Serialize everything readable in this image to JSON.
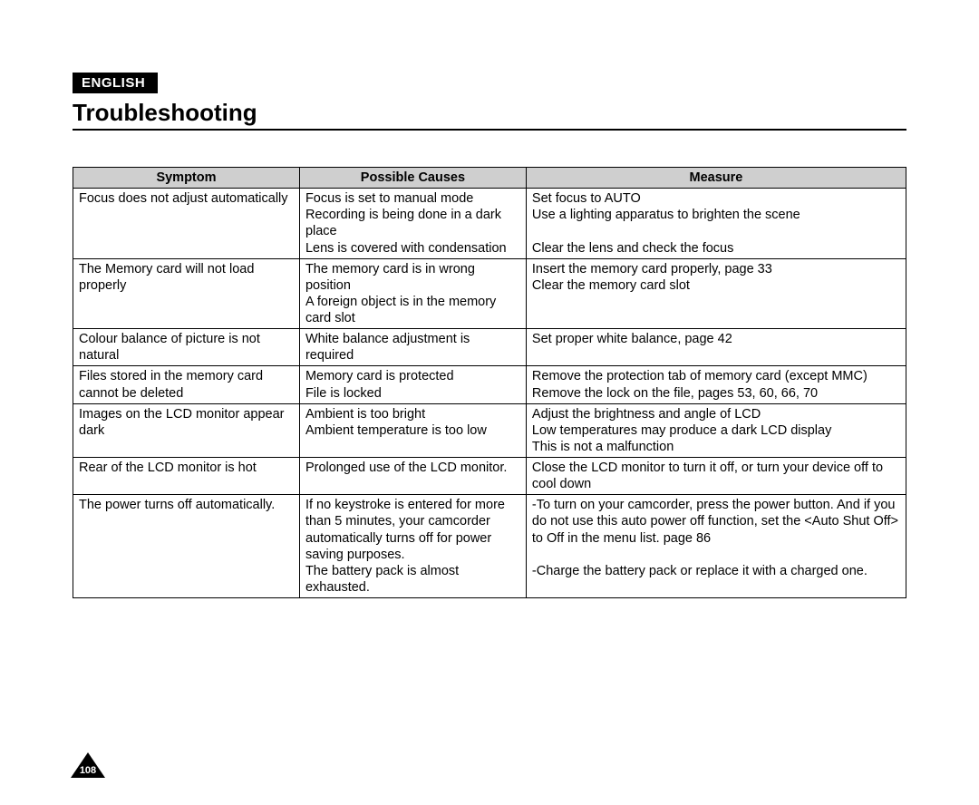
{
  "language_badge": "ENGLISH",
  "title": "Troubleshooting",
  "page_number": "108",
  "table": {
    "background_header": "#cfcfcf",
    "border_color": "#000000",
    "font_size_pt": 11,
    "columns": [
      "Symptom",
      "Possible Causes",
      "Measure"
    ],
    "column_widths_pct": [
      27.2,
      27.2,
      45.6
    ],
    "rows": [
      {
        "symptom": "Focus does not adjust automatically",
        "cause": "Focus is set to manual mode\nRecording is being done in a dark place\nLens is covered with condensation",
        "measure": "Set focus to AUTO\nUse a lighting apparatus to brighten the scene\n\nClear the lens and check the focus"
      },
      {
        "symptom": "The Memory card will not load properly",
        "cause": "The memory card is in wrong position\nA foreign object is in the memory card slot",
        "measure": "Insert the memory card properly, page 33\nClear the memory card slot"
      },
      {
        "symptom": "Colour balance of picture is not natural",
        "cause": "White balance adjustment is required",
        "measure": "Set proper white balance, page 42"
      },
      {
        "symptom": "Files stored in the memory card cannot be deleted",
        "cause": "Memory card  is protected\nFile is locked",
        "measure": "Remove the protection tab of memory card (except MMC)\nRemove the lock on the file, pages 53, 60, 66, 70"
      },
      {
        "symptom": "Images on the LCD monitor appear dark",
        "cause": "Ambient is too bright\nAmbient temperature is too low",
        "measure": "Adjust the brightness and angle of LCD\nLow temperatures may produce a dark LCD display\nThis is not a malfunction"
      },
      {
        "symptom": "Rear of the LCD monitor is hot",
        "cause": "Prolonged use of the LCD monitor.",
        "measure": "Close the LCD monitor to turn it off, or turn your device off to cool down"
      },
      {
        "symptom": "The power turns off automatically.",
        "cause": "If no keystroke is entered for more than 5 minutes, your camcorder automatically turns off for power saving purposes.\nThe battery pack is almost exhausted.",
        "measure": "-To turn on your camcorder, press the power button. And if you do not use this auto power off function, set the <Auto Shut Off> to Off in the menu list. page 86\n\n-Charge the battery pack or replace it with a charged one."
      }
    ]
  }
}
